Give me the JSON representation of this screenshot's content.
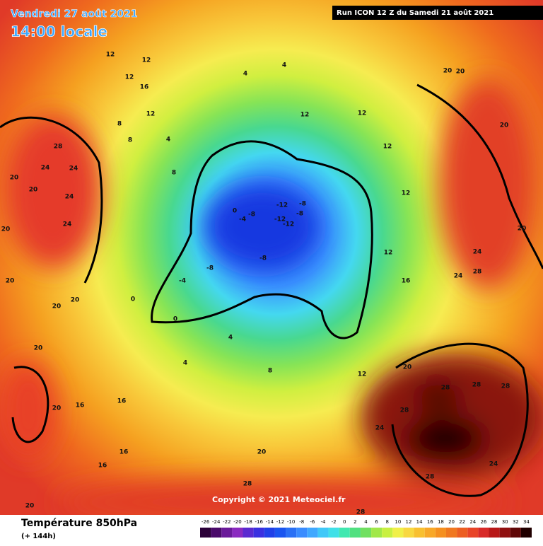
{
  "header": {
    "date": "Vendredi 27 août 2021",
    "time": "14:00 locale",
    "run": "Run ICON 12 Z du Samedi 21 août 2021"
  },
  "copyright": "Copyright © 2021 Meteociel.fr",
  "footer": {
    "parameter": "Température 850hPa",
    "lead_time": "(+ 144h)"
  },
  "legend": {
    "values": [
      -26,
      -24,
      -22,
      -20,
      -18,
      -16,
      -14,
      -12,
      -10,
      -8,
      -6,
      -4,
      -2,
      0,
      2,
      4,
      6,
      8,
      10,
      12,
      14,
      16,
      18,
      20,
      22,
      24,
      26,
      28,
      30,
      32,
      34
    ],
    "colors": [
      "#2b0038",
      "#4a0a6a",
      "#6a1a9a",
      "#8a2ac0",
      "#5a2ad0",
      "#3a30e0",
      "#2040e8",
      "#1a55f0",
      "#2a70f5",
      "#3a8cff",
      "#40a8ff",
      "#40c8f8",
      "#40e0e8",
      "#40e8b0",
      "#50e080",
      "#70e060",
      "#a0e848",
      "#c8f040",
      "#f0f048",
      "#f8d840",
      "#f8c030",
      "#f8a828",
      "#f59020",
      "#f07820",
      "#ec5e22",
      "#e84428",
      "#d82a28",
      "#b81818",
      "#901010",
      "#600808",
      "#200000"
    ]
  },
  "map_labels": [
    28,
    24,
    24,
    20,
    24,
    24,
    20,
    20,
    20,
    20,
    20,
    20,
    20,
    16,
    16,
    12,
    12,
    12,
    16,
    12,
    8,
    8,
    4,
    8,
    4,
    4,
    12,
    12,
    12,
    12,
    12,
    16,
    0,
    -4,
    -8,
    -12,
    -8,
    -12,
    -8,
    -12,
    -8,
    -8,
    -4,
    0,
    0,
    4,
    4,
    8,
    12,
    20,
    28,
    28,
    28,
    28,
    24,
    28,
    28,
    24,
    20,
    20,
    20,
    20,
    24,
    28,
    24,
    16,
    16,
    20,
    20,
    28
  ]
}
